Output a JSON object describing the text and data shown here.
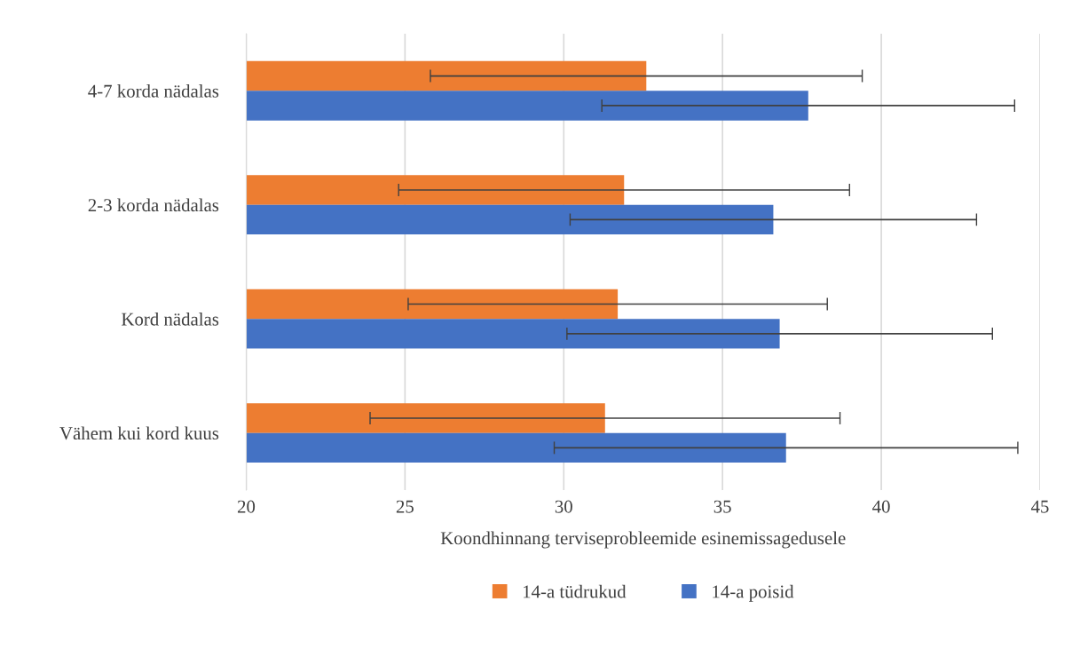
{
  "chart_data": {
    "type": "bar",
    "orientation": "horizontal",
    "xlabel": "Koondhinnang terviseprobleemide esinemissagedusele",
    "categories": [
      "4-7 korda nädalas",
      "2-3 korda nädalas",
      "Kord nädalas",
      "Vähem kui kord kuus"
    ],
    "series": [
      {
        "name": "14-a tüdrukud",
        "color": "#ed7d31",
        "values": [
          32.6,
          31.9,
          31.7,
          31.3
        ],
        "errors": [
          6.8,
          7.1,
          6.6,
          7.4
        ]
      },
      {
        "name": "14-a poisid",
        "color": "#4472c4",
        "values": [
          37.7,
          36.6,
          36.8,
          37.0
        ],
        "errors": [
          6.5,
          6.4,
          6.7,
          7.3
        ]
      }
    ],
    "xlim": [
      20,
      45
    ],
    "xticks": [
      20,
      25,
      30,
      35,
      40,
      45
    ],
    "grid": "x",
    "legend": "bottom"
  }
}
